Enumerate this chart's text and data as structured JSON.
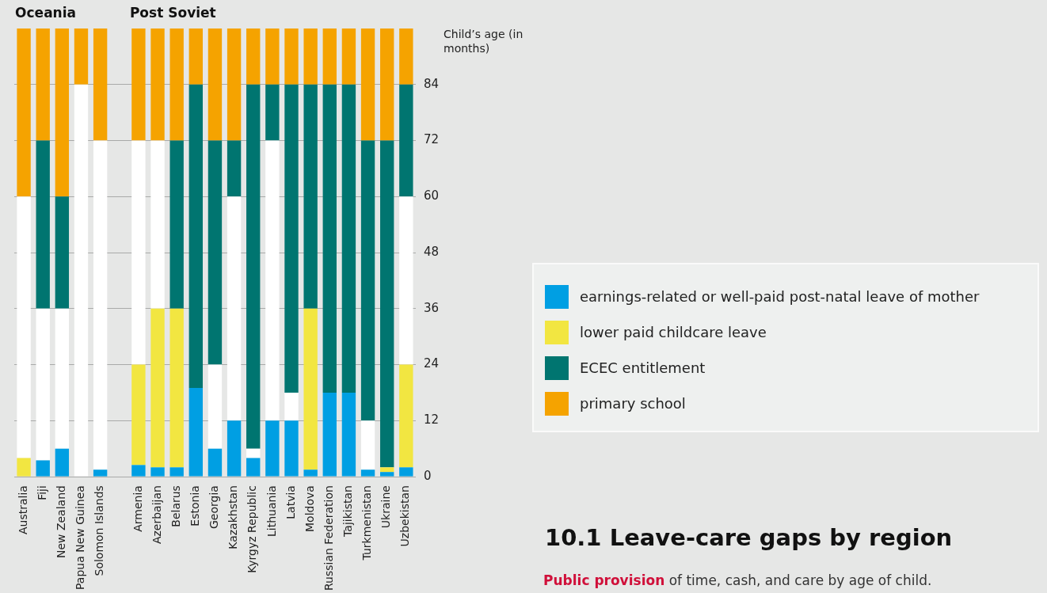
{
  "chart_data": {
    "type": "bar",
    "stacked": true,
    "title": "10.1 Leave-care gaps by region",
    "subtitle": "Public provision of time, cash, and care by age of child.",
    "ylabel": "Child’s age (in months)",
    "categories": [
      "Australia",
      "Fiji",
      "New Zealand",
      "Papua New Guinea",
      "Solomon Islands",
      null,
      "Armenia",
      "Azerbaijan",
      "Belarus",
      "Estonia",
      "Georgia",
      "Kazakhstan",
      "Kyrgyz Republic",
      "Lithuania",
      "Latvia",
      "Moldova",
      "Russian Federation",
      "Tajikistan",
      "Turkmenistan",
      "Ukraine",
      "Uzbekistan"
    ],
    "series": [
      {
        "name": "earnings-related or well-paid post-natal leave of mother",
        "color": "#009fe3",
        "values": [
          null,
          3.5,
          6,
          null,
          1.5,
          null,
          2.5,
          2,
          2,
          19,
          6,
          12,
          4,
          12,
          12,
          1.5,
          18,
          18,
          1.5,
          1,
          2
        ]
      },
      {
        "name": "lower paid childcare leave",
        "color": "#f2e641",
        "values": [
          4,
          null,
          null,
          null,
          null,
          null,
          21.5,
          34,
          34,
          null,
          null,
          null,
          null,
          null,
          null,
          34.5,
          null,
          null,
          null,
          1,
          22
        ]
      },
      {
        "color": "#ffffff",
        "values": [
          56,
          32.5,
          30,
          84,
          70.5,
          null,
          48,
          36,
          null,
          null,
          18,
          48,
          2,
          60,
          6,
          null,
          null,
          null,
          10.5,
          null,
          36
        ]
      },
      {
        "name": "ECEC entitlement",
        "color": "#007570",
        "values": [
          null,
          36,
          24,
          null,
          null,
          null,
          null,
          null,
          36,
          65,
          48,
          12,
          78,
          12,
          66,
          48,
          66,
          66,
          60,
          70,
          24
        ]
      },
      {
        "name": "primary school",
        "color": "#f5a300",
        "values": [
          36,
          24,
          36,
          12,
          24,
          null,
          24,
          24,
          24,
          12,
          24,
          24,
          12,
          12,
          12,
          12,
          12,
          12,
          24,
          24,
          12
        ]
      }
    ],
    "ylim": [
      0,
      96
    ],
    "yticks": [
      0,
      12,
      24,
      36,
      48,
      60,
      72,
      84
    ],
    "grid": "y",
    "legend": "right",
    "annotations": [
      "Oceania",
      "Post Soviet"
    ]
  }
}
